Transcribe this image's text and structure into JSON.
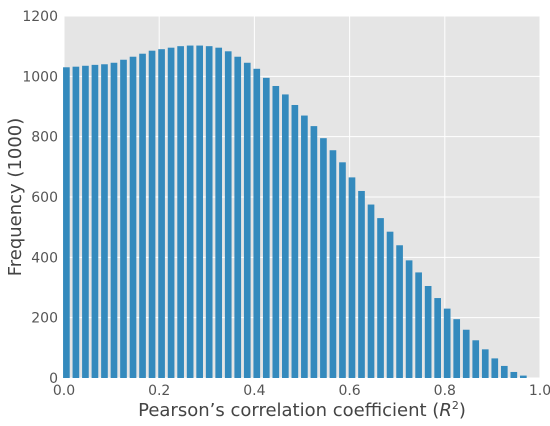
{
  "chart_data": {
    "type": "bar",
    "xlabel_prefix": "Pearson’s correlation coefficient (",
    "xlabel_var": "R",
    "xlabel_sup": "2",
    "xlabel_suffix": ")",
    "ylabel": "Frequency (1000)",
    "xlim": [
      0,
      1
    ],
    "ylim": [
      0,
      1200
    ],
    "grid": true,
    "bar_width": 0.014,
    "bar_color": "#348ABD",
    "background_color": "#E5E5E5",
    "x_ticks": [
      "0.0",
      "0.2",
      "0.4",
      "0.6",
      "0.8",
      "1.0"
    ],
    "y_ticks": [
      "0",
      "200",
      "400",
      "600",
      "800",
      "1000",
      "1200"
    ],
    "x": [
      0.005,
      0.025,
      0.045,
      0.065,
      0.085,
      0.105,
      0.125,
      0.145,
      0.165,
      0.185,
      0.205,
      0.225,
      0.245,
      0.265,
      0.285,
      0.305,
      0.325,
      0.345,
      0.365,
      0.385,
      0.405,
      0.425,
      0.445,
      0.465,
      0.485,
      0.505,
      0.525,
      0.545,
      0.565,
      0.585,
      0.605,
      0.625,
      0.645,
      0.665,
      0.685,
      0.705,
      0.725,
      0.745,
      0.765,
      0.785,
      0.805,
      0.825,
      0.845,
      0.865,
      0.885,
      0.905,
      0.925,
      0.945,
      0.965
    ],
    "values": [
      1030,
      1032,
      1035,
      1038,
      1040,
      1045,
      1055,
      1065,
      1075,
      1085,
      1090,
      1095,
      1100,
      1102,
      1102,
      1100,
      1095,
      1083,
      1065,
      1045,
      1025,
      995,
      968,
      940,
      905,
      870,
      835,
      795,
      755,
      715,
      665,
      620,
      575,
      530,
      485,
      440,
      390,
      350,
      305,
      265,
      230,
      195,
      160,
      125,
      95,
      65,
      40,
      20,
      8
    ]
  }
}
